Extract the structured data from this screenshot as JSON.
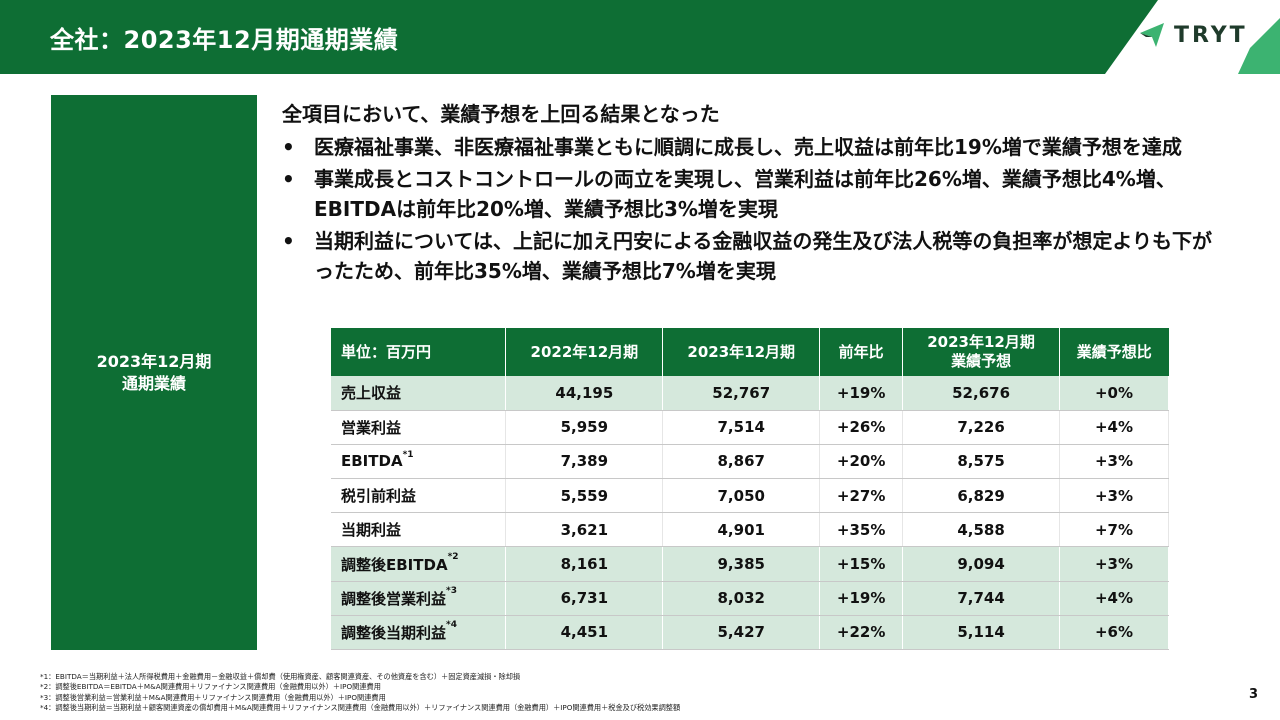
{
  "header": {
    "title": "全社：2023年12月期通期業績",
    "logo_text": "TRYT"
  },
  "side_panel": {
    "line1": "2023年12月期",
    "line2": "通期業績"
  },
  "summary": {
    "lead": "全項目において、業績予想を上回る結果となった",
    "bullet_symbol": "•",
    "bullets": [
      "医療福祉事業、非医療福祉事業ともに順調に成長し、売上収益は前年比19%増で業績予想を達成",
      "事業成長とコストコントロールの両立を実現し、営業利益は前年比26%増、業績予想比4%増、EBITDAは前年比20%増、業績予想比3%増を実現",
      "当期利益については、上記に加え円安による金融収益の発生及び法人税等の負担率が想定よりも下がったため、前年比35%増、業績予想比7%増を実現"
    ]
  },
  "table": {
    "headers": [
      "単位：百万円",
      "2022年12月期",
      "2023年12月期",
      "前年比",
      "2023年12月期",
      "業績予想",
      "業績予想比"
    ],
    "rows": [
      {
        "label": "売上収益",
        "note": "",
        "fy2022": "44,195",
        "fy2023": "52,767",
        "yoy": "+19%",
        "forecast": "52,676",
        "vs_forecast": "+0%"
      },
      {
        "label": "営業利益",
        "note": "",
        "fy2022": "5,959",
        "fy2023": "7,514",
        "yoy": "+26%",
        "forecast": "7,226",
        "vs_forecast": "+4%"
      },
      {
        "label": "EBITDA",
        "note": "*1",
        "fy2022": "7,389",
        "fy2023": "8,867",
        "yoy": "+20%",
        "forecast": "8,575",
        "vs_forecast": "+3%"
      },
      {
        "label": "税引前利益",
        "note": "",
        "fy2022": "5,559",
        "fy2023": "7,050",
        "yoy": "+27%",
        "forecast": "6,829",
        "vs_forecast": "+3%"
      },
      {
        "label": "当期利益",
        "note": "",
        "fy2022": "3,621",
        "fy2023": "4,901",
        "yoy": "+35%",
        "forecast": "4,588",
        "vs_forecast": "+7%"
      },
      {
        "label": "調整後EBITDA",
        "note": "*2",
        "fy2022": "8,161",
        "fy2023": "9,385",
        "yoy": "+15%",
        "forecast": "9,094",
        "vs_forecast": "+3%"
      },
      {
        "label": "調整後営業利益",
        "note": "*3",
        "fy2022": "6,731",
        "fy2023": "8,032",
        "yoy": "+19%",
        "forecast": "7,744",
        "vs_forecast": "+4%"
      },
      {
        "label": "調整後当期利益",
        "note": "*4",
        "fy2022": "4,451",
        "fy2023": "5,427",
        "yoy": "+22%",
        "forecast": "5,114",
        "vs_forecast": "+6%"
      }
    ]
  },
  "footnotes": [
    "*1：EBITDA＝当期利益＋法人所得税費用＋金融費用－金融収益＋償却費（使用権資産、顧客関連資産、その他資産を含む）＋固定資産減損・除却損",
    "*2：調整後EBITDA＝EBITDA＋M&A関連費用＋リファイナンス関連費用（金融費用以外）＋IPO関連費用",
    "*3：調整後営業利益＝営業利益＋M&A関連費用＋リファイナンス関連費用（金融費用以外）＋IPO関連費用",
    "*4：調整後当期利益＝当期利益＋顧客関連資産の償却費用＋M&A関連費用＋リファイナンス関連費用（金融費用以外）＋リファイナンス関連費用（金融費用）＋IPO関連費用＋税金及び税効果調整額"
  ],
  "page_number": "3",
  "colors": {
    "brand_green": "#0e6e34",
    "row_shade": "#d5e8dc",
    "logo_light_green": "#3cb371"
  }
}
